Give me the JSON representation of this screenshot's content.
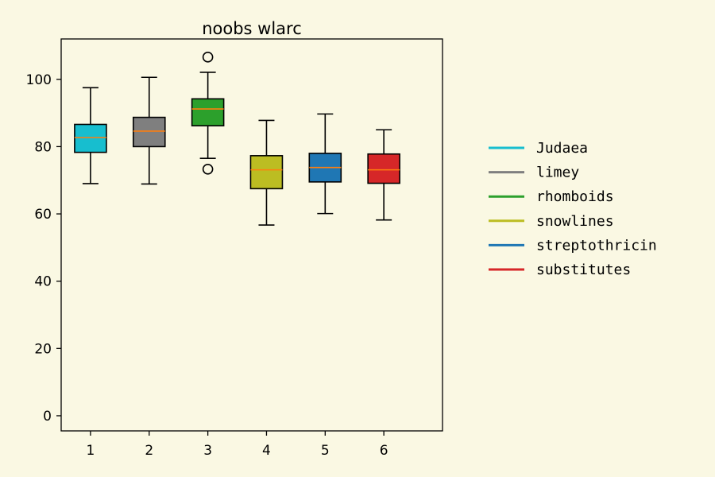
{
  "chart_data": {
    "type": "box",
    "title": "noobs wlarc",
    "xlabel": "",
    "ylabel": "",
    "categories": [
      "1",
      "2",
      "3",
      "4",
      "5",
      "6"
    ],
    "ylim": [
      -4.5,
      112
    ],
    "yticks": [
      0,
      20,
      40,
      60,
      80,
      100
    ],
    "grid": false,
    "legend_position": "right",
    "median_color": "#ff7f0e",
    "series": [
      {
        "name": "Judaea",
        "color": "#17becf",
        "whisker_low": 69.0,
        "q1": 78.3,
        "median": 82.7,
        "q3": 86.6,
        "whisker_high": 97.5,
        "outliers": []
      },
      {
        "name": "limey",
        "color": "#7f7f7f",
        "whisker_low": 68.9,
        "q1": 80.0,
        "median": 84.6,
        "q3": 88.7,
        "whisker_high": 100.6,
        "outliers": []
      },
      {
        "name": "rhomboids",
        "color": "#2ca02c",
        "whisker_low": 76.5,
        "q1": 86.2,
        "median": 91.2,
        "q3": 94.2,
        "whisker_high": 102.1,
        "outliers": [
          106.6,
          73.3
        ]
      },
      {
        "name": "snowlines",
        "color": "#bcbd22",
        "whisker_low": 56.7,
        "q1": 67.5,
        "median": 73.1,
        "q3": 77.3,
        "whisker_high": 87.8,
        "outliers": []
      },
      {
        "name": "streptothricin",
        "color": "#1f77b4",
        "whisker_low": 60.1,
        "q1": 69.5,
        "median": 73.8,
        "q3": 78.0,
        "whisker_high": 89.7,
        "outliers": []
      },
      {
        "name": "substitutes",
        "color": "#d62728",
        "whisker_low": 58.2,
        "q1": 69.1,
        "median": 73.1,
        "q3": 77.8,
        "whisker_high": 85.0,
        "outliers": []
      }
    ]
  }
}
